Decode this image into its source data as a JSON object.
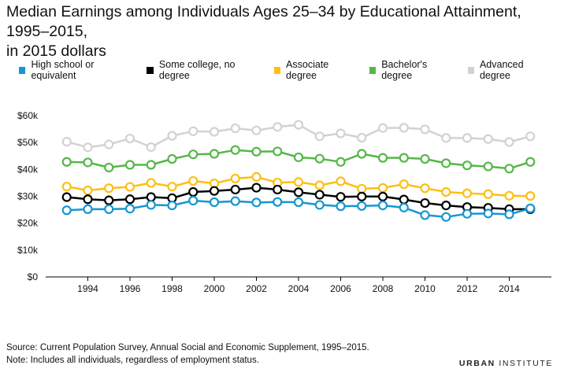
{
  "title_line1": "Median Earnings among Individuals Ages 25–34 by Educational Attainment, 1995–2015,",
  "title_line2": "in 2015 dollars",
  "footer": {
    "source": "Source: Current Population Survey, Annual Social and Economic Supplement, 1995–2015.",
    "note": "Note: Includes all individuals, regardless of employment status.",
    "brand_bold": "URBAN",
    "brand_light": "INSTITUTE"
  },
  "chart_data": {
    "type": "line",
    "x": [
      1993,
      1994,
      1995,
      1996,
      1997,
      1998,
      1999,
      2000,
      2001,
      2002,
      2003,
      2004,
      2005,
      2006,
      2007,
      2008,
      2009,
      2010,
      2011,
      2012,
      2013,
      2014,
      2015
    ],
    "x_ticks": [
      1994,
      1996,
      1998,
      2000,
      2002,
      2004,
      2006,
      2008,
      2010,
      2012,
      2014
    ],
    "x_tick_labels": [
      "1994",
      "1996",
      "1998",
      "2000",
      "2002",
      "2004",
      "2006",
      "2008",
      "2010",
      "2012",
      "2014"
    ],
    "ylim": [
      0,
      60000
    ],
    "y_ticks": [
      0,
      10000,
      20000,
      30000,
      40000,
      50000,
      60000
    ],
    "y_tick_labels": [
      "$0",
      "$10k",
      "$20k",
      "$30k",
      "$40k",
      "$50k",
      "$60k"
    ],
    "grid": false,
    "legend_position": "top",
    "series": [
      {
        "name": "High school or equivalent",
        "color": "#1696d2",
        "values": [
          24800,
          25200,
          25200,
          25400,
          26800,
          26600,
          28400,
          27800,
          28200,
          27700,
          27900,
          27800,
          26800,
          26300,
          26400,
          26600,
          25800,
          23000,
          22300,
          23500,
          23600,
          23300,
          25500
        ]
      },
      {
        "name": "Some college, no degree",
        "color": "#000000",
        "values": [
          29700,
          28900,
          28500,
          28900,
          29700,
          29300,
          31600,
          32000,
          32500,
          33200,
          32500,
          31500,
          30600,
          29800,
          29900,
          29900,
          28800,
          27500,
          26600,
          26000,
          25700,
          25200,
          25200
        ]
      },
      {
        "name": "Associate degree",
        "color": "#fdbf11",
        "values": [
          33600,
          32200,
          33000,
          33500,
          35000,
          33600,
          35700,
          34800,
          36600,
          37200,
          35100,
          35300,
          34100,
          35600,
          32800,
          33100,
          34500,
          33000,
          31600,
          31100,
          30800,
          30200,
          30100
        ]
      },
      {
        "name": "Bachelor's degree",
        "color": "#55b748",
        "values": [
          42800,
          42600,
          40700,
          41700,
          41700,
          43900,
          45600,
          45800,
          47200,
          46600,
          46700,
          44500,
          44000,
          42800,
          45800,
          44300,
          44300,
          43900,
          42300,
          41500,
          41100,
          40300,
          42800
        ]
      },
      {
        "name": "Advanced degree",
        "color": "#d2d2d2",
        "values": [
          50300,
          48200,
          49300,
          51500,
          48300,
          52500,
          54200,
          54000,
          55300,
          54500,
          55800,
          56600,
          52300,
          53400,
          51800,
          55400,
          55500,
          54900,
          51700,
          51700,
          51300,
          50200,
          52300
        ]
      }
    ]
  }
}
